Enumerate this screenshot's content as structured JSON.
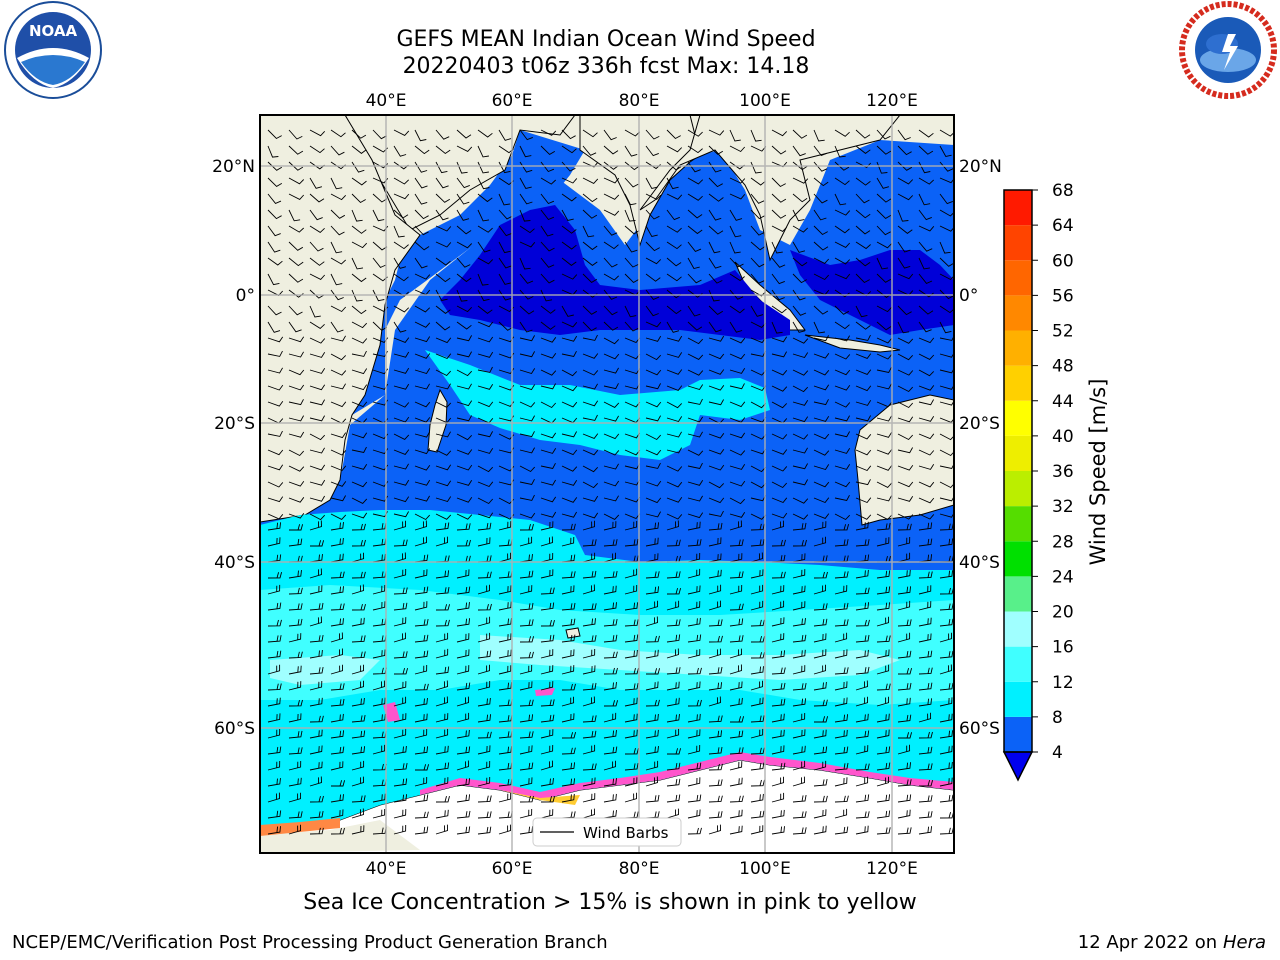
{
  "header": {
    "title_line1": "GEFS MEAN Indian Ocean Wind Speed",
    "title_line2": "20220403 t06z 336h fcst   Max: 14.18"
  },
  "logos": {
    "noaa_text": "NOAA",
    "noaa_ring_text": "NATIONAL OCEANIC AND ATMOSPHERIC ADMINISTRATION · U.S. DEPARTMENT OF COMMERCE",
    "nws_ring_text": "NATIONAL WEATHER SERVICE"
  },
  "map": {
    "lon_ticks": [
      "40°E",
      "60°E",
      "80°E",
      "100°E",
      "120°E"
    ],
    "lat_ticks_left": [
      "20°N",
      "0°",
      "20°S",
      "40°S",
      "60°S"
    ],
    "lat_ticks_right": [
      "20°N",
      "0°",
      "20°S",
      "40°S",
      "60°S"
    ],
    "legend_label": "Wind Barbs"
  },
  "colorbar": {
    "label": "Wind Speed [m/s]",
    "ticks": [
      "4",
      "8",
      "12",
      "16",
      "20",
      "24",
      "28",
      "32",
      "36",
      "40",
      "44",
      "48",
      "52",
      "56",
      "60",
      "64",
      "68"
    ],
    "colors": [
      "#0b62f7",
      "#00f0ff",
      "#40ffff",
      "#a0ffff",
      "#58f08a",
      "#00e000",
      "#55dd00",
      "#bbee00",
      "#eeee00",
      "#ffff00",
      "#ffd000",
      "#ffb000",
      "#ff8800",
      "#ff6600",
      "#ff4400",
      "#ff1a00"
    ],
    "underflow_color": "#0000ee"
  },
  "footer": {
    "sea_ice_note": "Sea Ice Concentration > 15% is shown in pink to yellow",
    "credit_left": "NCEP/EMC/Verification Post Processing Product Generation Branch",
    "credit_right_date": "12 Apr 2022 on",
    "credit_right_host": "Hera"
  }
}
